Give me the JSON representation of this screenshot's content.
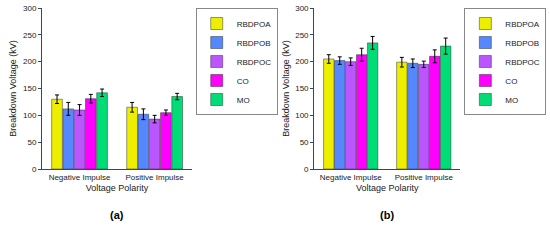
{
  "chart_data": [
    {
      "type": "bar",
      "title": "(a)",
      "xlabel": "Voltage Polarity",
      "ylabel": "Breakdown Voltage (kV)",
      "categories": [
        "Negative Impulse",
        "Positive Impulse"
      ],
      "series": [
        {
          "name": "RBDPOA",
          "color": "#eeee00",
          "values": [
            130,
            115
          ],
          "errors": [
            8,
            9
          ]
        },
        {
          "name": "RBDPOB",
          "color": "#5588ff",
          "values": [
            112,
            102
          ],
          "errors": [
            12,
            10
          ]
        },
        {
          "name": "RBDPOC",
          "color": "#bb55ff",
          "values": [
            110,
            93
          ],
          "errors": [
            10,
            7
          ]
        },
        {
          "name": "CO",
          "color": "#ff00ff",
          "values": [
            131,
            105
          ],
          "errors": [
            8,
            5
          ]
        },
        {
          "name": "MO",
          "color": "#00dd77",
          "values": [
            142,
            135
          ],
          "errors": [
            7,
            6
          ]
        }
      ],
      "ylim": [
        0,
        300
      ],
      "yticks": [
        0,
        50,
        100,
        150,
        200,
        250,
        300
      ],
      "grid": false,
      "legend": "upper right"
    },
    {
      "type": "bar",
      "title": "(b)",
      "xlabel": "Voltage Polarity",
      "ylabel": "Breakdown Voltage (kV)",
      "categories": [
        "Negative Impulse",
        "Positive Impulse"
      ],
      "series": [
        {
          "name": "RBDPOA",
          "color": "#eeee00",
          "values": [
            205,
            199
          ],
          "errors": [
            8,
            9
          ]
        },
        {
          "name": "RBDPOB",
          "color": "#5588ff",
          "values": [
            202,
            197
          ],
          "errors": [
            7,
            8
          ]
        },
        {
          "name": "RBDPOC",
          "color": "#bb55ff",
          "values": [
            200,
            195
          ],
          "errors": [
            7,
            6
          ]
        },
        {
          "name": "CO",
          "color": "#ff00ff",
          "values": [
            213,
            210
          ],
          "errors": [
            12,
            12
          ]
        },
        {
          "name": "MO",
          "color": "#00dd77",
          "values": [
            235,
            229
          ],
          "errors": [
            12,
            15
          ]
        }
      ],
      "ylim": [
        0,
        300
      ],
      "yticks": [
        0,
        50,
        100,
        150,
        200,
        250,
        300
      ],
      "grid": false,
      "legend": "upper right"
    }
  ]
}
